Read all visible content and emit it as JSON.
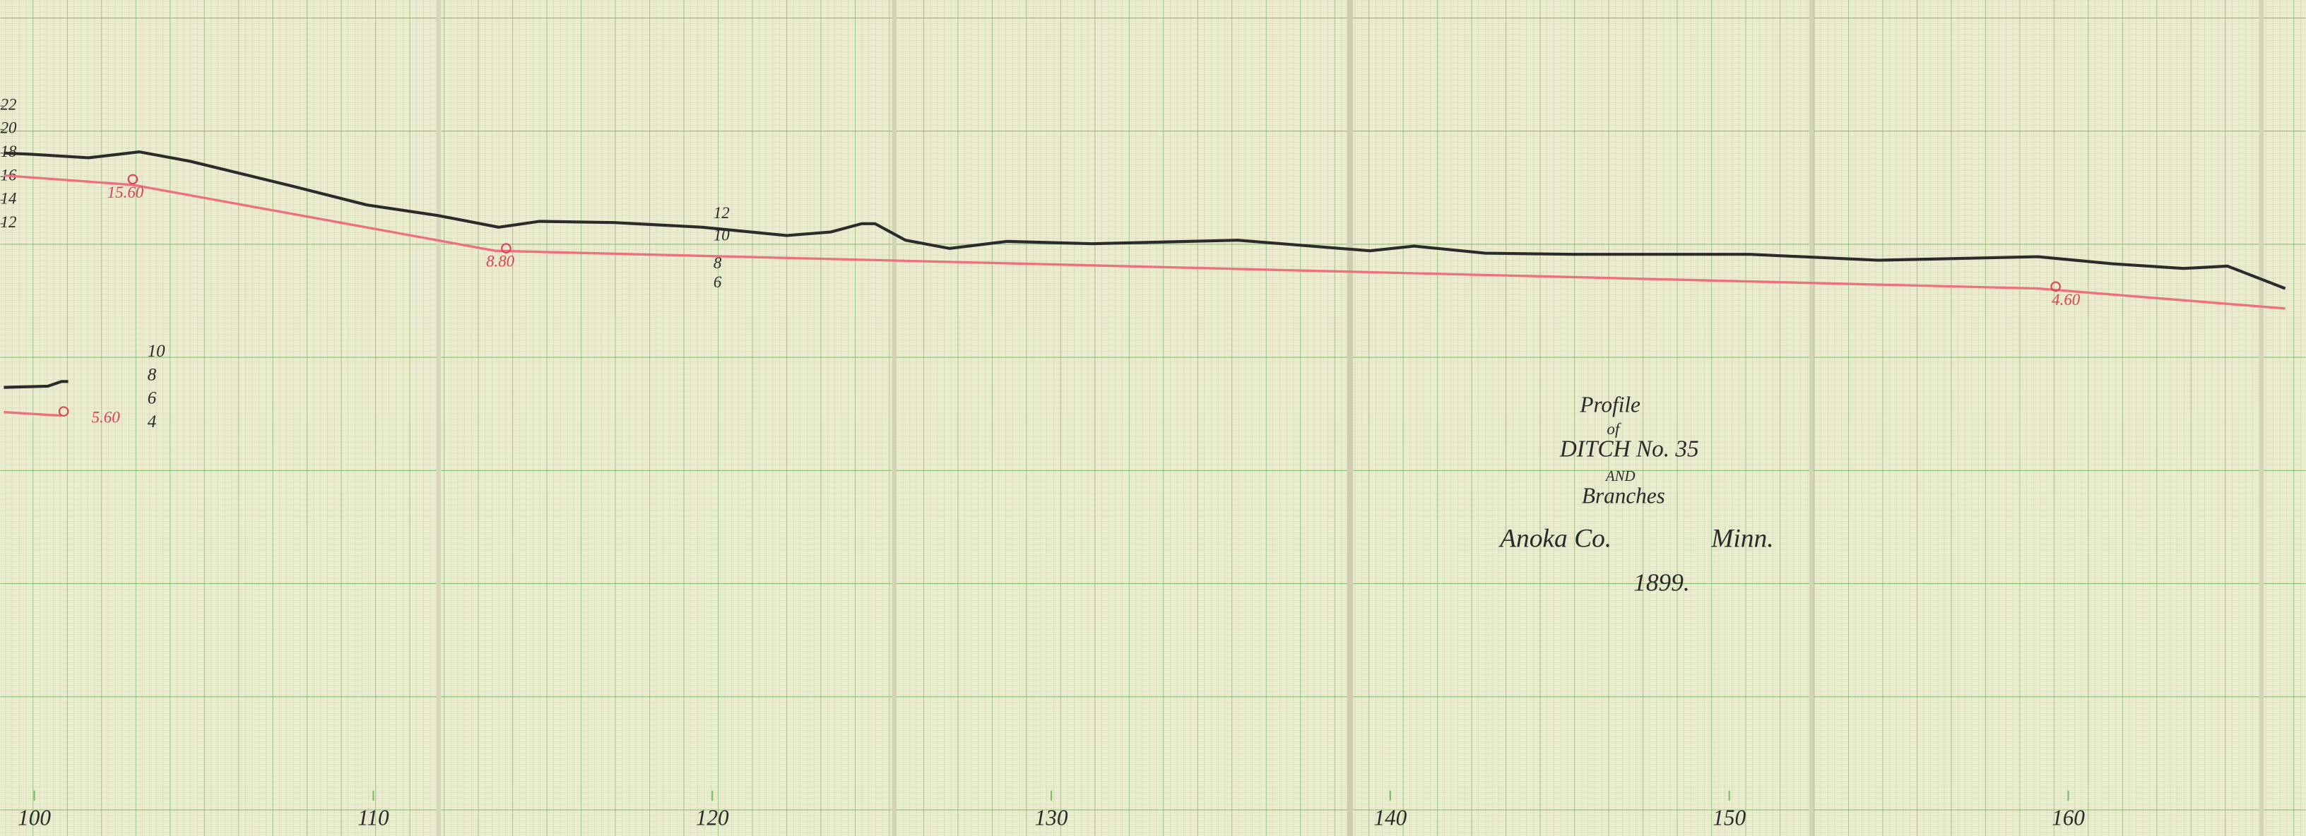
{
  "chart_data": {
    "type": "line",
    "xlim": [
      99,
      167
    ],
    "ylim": [
      -40,
      31
    ],
    "xticks": [
      100,
      110,
      120,
      130,
      140,
      150,
      160
    ],
    "yticks": [
      12,
      14,
      16,
      18,
      20,
      22
    ],
    "series": [
      {
        "color": "#2b2b2b",
        "x": [
          99.1,
          99.9,
          101.6,
          103.1,
          104.6,
          107.6,
          109.8,
          111.9,
          113.7,
          114.9,
          117.1,
          119.7,
          122.2,
          123.5,
          124.4,
          124.8,
          125.7,
          127.0,
          128.7,
          131.2,
          135.5,
          139.4,
          140.7,
          142.8,
          145.4,
          150.6,
          154.4,
          159.1,
          161.3,
          163.4,
          164.7,
          166.4
        ],
        "values": [
          18.0,
          17.9,
          17.6,
          18.1,
          17.3,
          15.2,
          13.6,
          12.7,
          11.7,
          12.2,
          12.1,
          11.7,
          11.0,
          11.3,
          12.0,
          12.0,
          10.6,
          9.9,
          10.5,
          10.3,
          10.6,
          9.7,
          10.1,
          9.5,
          9.4,
          9.4,
          8.9,
          9.2,
          8.6,
          8.2,
          8.4,
          6.5
        ]
      },
      {
        "color": "#ee6f80",
        "x": [
          99.1,
          102.9,
          113.6,
          159.1,
          166.4
        ],
        "values": [
          16.1,
          15.3,
          9.7,
          6.5,
          4.8
        ]
      },
      {
        "color": "#2b2b2b",
        "x": [
          99.1,
          100.4,
          100.8,
          101.0
        ],
        "values": [
          -1.9,
          -1.8,
          -1.4,
          -1.4
        ]
      },
      {
        "color": "#ee6f80",
        "x": [
          99.1,
          100.8
        ],
        "values": [
          -4.0,
          -4.3
        ]
      }
    ],
    "grade_labels": [
      "15.60",
      "8.80",
      "4.60",
      "5.60"
    ],
    "elevation_notes": [
      "12",
      "10",
      "8",
      "6"
    ],
    "branch_elevation_notes": [
      "10",
      "8",
      "6",
      "4"
    ],
    "title_block": {
      "line1": "Profile",
      "line2": "of",
      "line3": "DITCH No. 35",
      "line4": "AND",
      "line5": "Branches",
      "county": "Anoka Co.",
      "state": "Minn.",
      "year": "1899."
    }
  }
}
